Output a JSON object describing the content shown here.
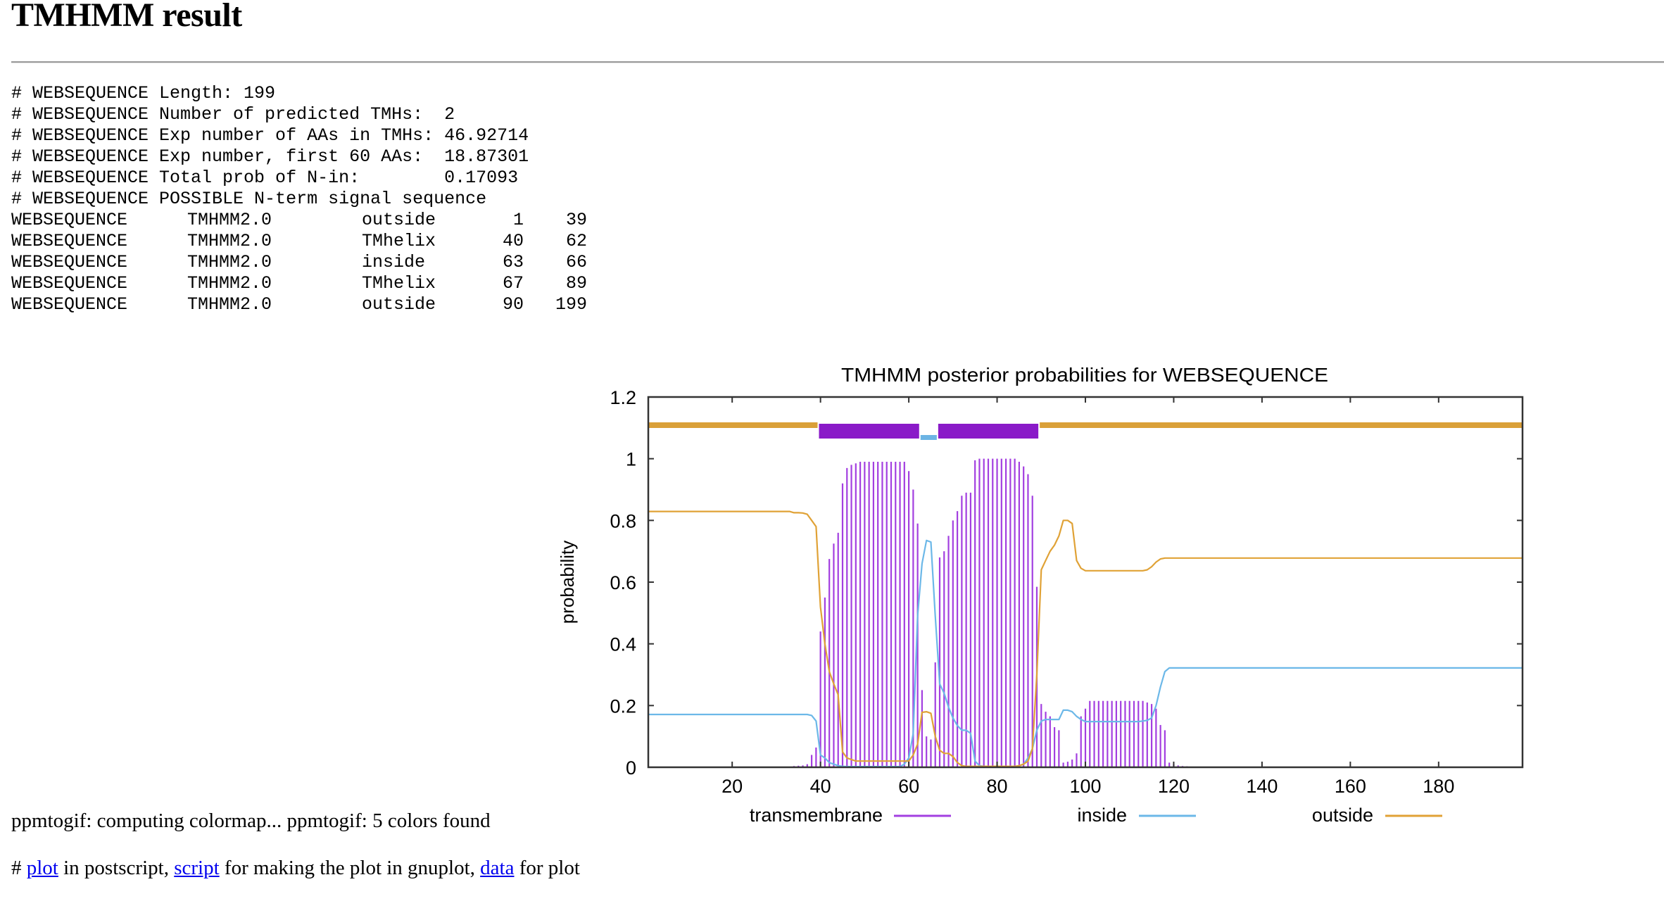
{
  "page": {
    "title": "TMHMM result"
  },
  "summary_lines": [
    "# WEBSEQUENCE Length: 199",
    "# WEBSEQUENCE Number of predicted TMHs:  2",
    "# WEBSEQUENCE Exp number of AAs in TMHs: 46.92714",
    "# WEBSEQUENCE Exp number, first 60 AAs:  18.87301",
    "# WEBSEQUENCE Total prob of N-in:        0.17093",
    "# WEBSEQUENCE POSSIBLE N-term signal sequence"
  ],
  "topology_table": {
    "rows": [
      {
        "seq": "WEBSEQUENCE",
        "source": "TMHMM2.0",
        "feature": "outside",
        "start": "1",
        "end": "39"
      },
      {
        "seq": "WEBSEQUENCE",
        "source": "TMHMM2.0",
        "feature": "TMhelix",
        "start": "40",
        "end": "62"
      },
      {
        "seq": "WEBSEQUENCE",
        "source": "TMHMM2.0",
        "feature": "inside",
        "start": "63",
        "end": "66"
      },
      {
        "seq": "WEBSEQUENCE",
        "source": "TMHMM2.0",
        "feature": "TMhelix",
        "start": "67",
        "end": "89"
      },
      {
        "seq": "WEBSEQUENCE",
        "source": "TMHMM2.0",
        "feature": "outside",
        "start": "90",
        "end": "199"
      }
    ]
  },
  "chart_data": {
    "type": "bar",
    "title": "TMHMM posterior probabilities for WEBSEQUENCE",
    "xlabel": "",
    "ylabel": "probability",
    "xlim": [
      1,
      199
    ],
    "ylim": [
      0,
      1.2
    ],
    "xticks": [
      20,
      40,
      60,
      80,
      100,
      120,
      140,
      160,
      180
    ],
    "yticks": [
      0,
      0.2,
      0.4,
      0.6,
      0.8,
      1,
      1.2
    ],
    "ytick_labels": [
      "0",
      "0.2",
      "0.4",
      "0.6",
      "0.8",
      "1",
      "1.2"
    ],
    "grid": false,
    "legend": {
      "position": "bottom",
      "entries": [
        {
          "label": "transmembrane",
          "color": "#a33fe0"
        },
        {
          "label": "inside",
          "color": "#6cb8e8"
        },
        {
          "label": "outside",
          "color": "#e0a236"
        }
      ]
    },
    "topology_bar": {
      "y": 1.1,
      "segments": [
        {
          "type": "outside",
          "start": 1,
          "end": 39,
          "color": "#daa038"
        },
        {
          "type": "TMhelix",
          "start": 40,
          "end": 62,
          "color": "#8a1ac8"
        },
        {
          "type": "inside",
          "start": 63,
          "end": 66,
          "color": "#6cb4e4"
        },
        {
          "type": "TMhelix",
          "start": 67,
          "end": 89,
          "color": "#8a1ac8"
        },
        {
          "type": "outside",
          "start": 90,
          "end": 199,
          "color": "#daa038"
        }
      ]
    },
    "series": [
      {
        "name": "transmembrane",
        "style": "impulses",
        "color": "#a33fe0",
        "x_start": 1,
        "values": [
          0,
          0,
          0,
          0,
          0,
          0,
          0,
          0,
          0,
          0,
          0,
          0,
          0,
          0,
          0,
          0,
          0,
          0,
          0,
          0,
          0,
          0,
          0,
          0,
          0,
          0,
          0,
          0,
          0,
          0,
          0,
          0,
          0,
          0.004,
          0.005,
          0.006,
          0.01,
          0.04,
          0.064,
          0.44,
          0.55,
          0.675,
          0.725,
          0.76,
          0.92,
          0.97,
          0.98,
          0.985,
          0.99,
          0.99,
          0.99,
          0.99,
          0.99,
          0.99,
          0.99,
          0.99,
          0.99,
          0.99,
          0.99,
          0.96,
          0.9,
          0.79,
          0.25,
          0.1,
          0.09,
          0.34,
          0.68,
          0.7,
          0.75,
          0.8,
          0.83,
          0.88,
          0.89,
          0.89,
          0.995,
          1,
          1,
          1,
          1,
          1,
          1,
          1,
          1,
          1,
          0.99,
          0.975,
          0.95,
          0.88,
          0.585,
          0.205,
          0.18,
          0.165,
          0.13,
          0.12,
          0.015,
          0.018,
          0.025,
          0.045,
          0.165,
          0.19,
          0.215,
          0.215,
          0.215,
          0.215,
          0.215,
          0.215,
          0.215,
          0.215,
          0.215,
          0.215,
          0.215,
          0.215,
          0.215,
          0.21,
          0.205,
          0.19,
          0.137,
          0.12,
          0.015,
          0.01,
          0.006,
          0.004,
          0.003,
          0,
          0,
          0,
          0,
          0,
          0,
          0,
          0,
          0,
          0,
          0,
          0,
          0,
          0,
          0,
          0,
          0,
          0,
          0,
          0,
          0,
          0,
          0,
          0,
          0,
          0,
          0,
          0,
          0,
          0,
          0,
          0,
          0,
          0,
          0,
          0,
          0,
          0,
          0,
          0,
          0,
          0,
          0,
          0,
          0,
          0,
          0,
          0,
          0,
          0,
          0,
          0,
          0,
          0,
          0,
          0,
          0,
          0,
          0,
          0,
          0,
          0,
          0,
          0,
          0,
          0,
          0,
          0,
          0,
          0,
          0,
          0,
          0,
          0,
          0,
          0
        ]
      },
      {
        "name": "inside",
        "style": "line",
        "color": "#6cb8e8",
        "x_start": 1,
        "values": [
          0.171,
          0.171,
          0.171,
          0.171,
          0.171,
          0.171,
          0.171,
          0.171,
          0.171,
          0.171,
          0.171,
          0.171,
          0.171,
          0.171,
          0.171,
          0.171,
          0.171,
          0.171,
          0.171,
          0.171,
          0.171,
          0.171,
          0.171,
          0.171,
          0.171,
          0.171,
          0.171,
          0.171,
          0.171,
          0.171,
          0.171,
          0.171,
          0.171,
          0.171,
          0.171,
          0.171,
          0.171,
          0.168,
          0.15,
          0.04,
          0.03,
          0.015,
          0.01,
          0.005,
          0.003,
          0.002,
          0.002,
          0.002,
          0.002,
          0.002,
          0.002,
          0.002,
          0.002,
          0.002,
          0.002,
          0.002,
          0.002,
          0.002,
          0.01,
          0.03,
          0.11,
          0.49,
          0.66,
          0.735,
          0.73,
          0.49,
          0.27,
          0.24,
          0.195,
          0.16,
          0.135,
          0.12,
          0.12,
          0.11,
          0.02,
          0.005,
          0.003,
          0.002,
          0.002,
          0.002,
          0.002,
          0.002,
          0.002,
          0.002,
          0.005,
          0.01,
          0.03,
          0.06,
          0.12,
          0.15,
          0.155,
          0.155,
          0.155,
          0.155,
          0.185,
          0.185,
          0.18,
          0.165,
          0.155,
          0.148,
          0.148,
          0.148,
          0.148,
          0.148,
          0.148,
          0.148,
          0.148,
          0.148,
          0.148,
          0.148,
          0.148,
          0.148,
          0.15,
          0.152,
          0.16,
          0.2,
          0.26,
          0.31,
          0.322,
          0.322,
          0.322,
          0.322,
          0.322,
          0.322,
          0.322,
          0.322,
          0.322,
          0.322,
          0.322,
          0.322,
          0.322,
          0.322,
          0.322,
          0.322,
          0.322,
          0.322,
          0.322,
          0.322,
          0.322,
          0.322,
          0.322,
          0.322,
          0.322,
          0.322,
          0.322,
          0.322,
          0.322,
          0.322,
          0.322,
          0.322,
          0.322,
          0.322,
          0.322,
          0.322,
          0.322,
          0.322,
          0.322,
          0.322,
          0.322,
          0.322,
          0.322,
          0.322,
          0.322,
          0.322,
          0.322,
          0.322,
          0.322,
          0.322,
          0.322,
          0.322,
          0.322,
          0.322,
          0.322,
          0.322,
          0.322,
          0.322,
          0.322,
          0.322,
          0.322,
          0.322,
          0.322,
          0.322,
          0.322,
          0.322,
          0.322,
          0.322,
          0.322,
          0.322,
          0.322,
          0.322,
          0.322,
          0.322,
          0.322,
          0.322,
          0.322,
          0.322,
          0.322,
          0.322,
          0.322
        ]
      },
      {
        "name": "outside",
        "style": "line",
        "color": "#e0a236",
        "x_start": 1,
        "values": [
          0.829,
          0.829,
          0.829,
          0.829,
          0.829,
          0.829,
          0.829,
          0.829,
          0.829,
          0.829,
          0.829,
          0.829,
          0.829,
          0.829,
          0.829,
          0.829,
          0.829,
          0.829,
          0.829,
          0.829,
          0.829,
          0.829,
          0.829,
          0.829,
          0.829,
          0.829,
          0.829,
          0.829,
          0.829,
          0.829,
          0.829,
          0.829,
          0.829,
          0.825,
          0.825,
          0.824,
          0.82,
          0.8,
          0.78,
          0.52,
          0.4,
          0.31,
          0.27,
          0.235,
          0.05,
          0.03,
          0.025,
          0.02,
          0.02,
          0.02,
          0.02,
          0.02,
          0.02,
          0.02,
          0.02,
          0.02,
          0.02,
          0.02,
          0.02,
          0.02,
          0.04,
          0.075,
          0.178,
          0.18,
          0.175,
          0.1,
          0.055,
          0.045,
          0.045,
          0.035,
          0.015,
          0.005,
          0.003,
          0.003,
          0.003,
          0.003,
          0.003,
          0.003,
          0.003,
          0.003,
          0.003,
          0.003,
          0.003,
          0.003,
          0.005,
          0.01,
          0.02,
          0.06,
          0.3,
          0.64,
          0.67,
          0.7,
          0.72,
          0.75,
          0.8,
          0.8,
          0.79,
          0.67,
          0.645,
          0.637,
          0.637,
          0.637,
          0.637,
          0.637,
          0.637,
          0.637,
          0.637,
          0.637,
          0.637,
          0.637,
          0.637,
          0.637,
          0.637,
          0.64,
          0.65,
          0.665,
          0.675,
          0.678,
          0.678,
          0.678,
          0.678,
          0.678,
          0.678,
          0.678,
          0.678,
          0.678,
          0.678,
          0.678,
          0.678,
          0.678,
          0.678,
          0.678,
          0.678,
          0.678,
          0.678,
          0.678,
          0.678,
          0.678,
          0.678,
          0.678,
          0.678,
          0.678,
          0.678,
          0.678,
          0.678,
          0.678,
          0.678,
          0.678,
          0.678,
          0.678,
          0.678,
          0.678,
          0.678,
          0.678,
          0.678,
          0.678,
          0.678,
          0.678,
          0.678,
          0.678,
          0.678,
          0.678,
          0.678,
          0.678,
          0.678,
          0.678,
          0.678,
          0.678,
          0.678,
          0.678,
          0.678,
          0.678,
          0.678,
          0.678,
          0.678,
          0.678,
          0.678,
          0.678,
          0.678,
          0.678,
          0.678,
          0.678,
          0.678,
          0.678,
          0.678,
          0.678,
          0.678,
          0.678,
          0.678,
          0.678,
          0.678,
          0.678,
          0.678,
          0.678,
          0.678,
          0.678,
          0.678,
          0.678,
          0.678
        ]
      }
    ]
  },
  "footer": {
    "ppm_message": "ppmtogif: computing colormap... ppmtogif: 5 colors found",
    "links": {
      "prefix": "# ",
      "plot_link": "plot",
      "after_plot": " in postscript, ",
      "script_link": "script",
      "after_script": " for making the plot in gnuplot, ",
      "data_link": "data",
      "after_data": " for plot"
    }
  }
}
